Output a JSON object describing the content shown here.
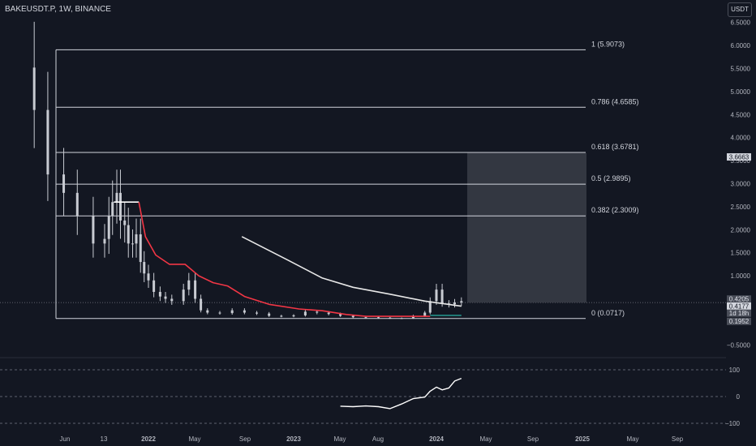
{
  "header": {
    "title": "BAKEUSDT.P, 1W, BINANCE",
    "currency": "USDT"
  },
  "colors": {
    "background": "#131722",
    "text": "#b2b5be",
    "fib_line": "#d1d4dc",
    "red_line": "#f23645",
    "white_curve": "#e8e8e8",
    "teal_line": "#26a69a",
    "candles": "#c8cbd2",
    "box_fill": "#3a3d47"
  },
  "price_axis": {
    "ticks": [
      "6.5000",
      "6.0000",
      "5.5000",
      "5.0000",
      "4.5000",
      "4.0000",
      "3.5000",
      "3.0000",
      "2.5000",
      "2.0000",
      "1.5000",
      "1.0000",
      "0.5000",
      "0.0000",
      "−0.5000"
    ],
    "labels": [
      {
        "text": "3.6663",
        "style": "light"
      },
      {
        "text": "0.4205",
        "style": "dark"
      },
      {
        "text": "0.4177",
        "style": "light"
      },
      {
        "text": "1d 18h",
        "style": "dark"
      },
      {
        "text": "0.1952",
        "style": "dark"
      }
    ]
  },
  "osc_axis": {
    "ticks": [
      "100",
      "0",
      "−100"
    ]
  },
  "time_axis": {
    "ticks": [
      "Jun",
      "13",
      "2022",
      "May",
      "Sep",
      "2023",
      "May",
      "Aug",
      "2024",
      "May",
      "Sep",
      "2025",
      "May",
      "Sep"
    ]
  },
  "fib_labels": [
    "1 (5.9073)",
    "0.786 (4.6585)",
    "0.618 (3.6781)",
    "0.5 (2.9895)",
    "0.382 (2.3009)",
    "0 (0.0717)"
  ],
  "chart_data": {
    "type": "line",
    "symbol": "BAKEUSDT.P",
    "timeframe": "1W",
    "exchange": "BINANCE",
    "y_range": [
      -0.6,
      6.7
    ],
    "fib_levels": [
      {
        "ratio": 1,
        "price": 5.9073
      },
      {
        "ratio": 0.786,
        "price": 4.6585
      },
      {
        "ratio": 0.618,
        "price": 3.6781
      },
      {
        "ratio": 0.5,
        "price": 2.9895
      },
      {
        "ratio": 0.382,
        "price": 2.3009
      },
      {
        "ratio": 0,
        "price": 0.0717
      }
    ],
    "last_price": 0.4177,
    "target_box": {
      "from": "2024-02",
      "to": "2025-01",
      "top": 3.6663,
      "bottom": 0.4177
    },
    "close_series": [
      [
        "2021-05-01",
        4.6
      ],
      [
        "2021-05-15",
        3.2
      ],
      [
        "2021-06-01",
        2.8
      ],
      [
        "2021-06-15",
        2.3
      ],
      [
        "2021-07-01",
        1.7
      ],
      [
        "2021-07-15",
        1.8
      ],
      [
        "2021-08-01",
        2.3
      ],
      [
        "2021-08-15",
        2.6
      ],
      [
        "2021-09-01",
        2.8
      ],
      [
        "2021-09-15",
        2.2
      ],
      [
        "2021-10-01",
        2.1
      ],
      [
        "2021-10-15",
        1.7
      ],
      [
        "2021-11-01",
        1.7
      ],
      [
        "2021-11-15",
        1.9
      ],
      [
        "2021-12-01",
        1.3
      ],
      [
        "2021-12-15",
        1.05
      ],
      [
        "2022-01-01",
        0.9
      ],
      [
        "2022-01-15",
        0.65
      ],
      [
        "2022-02-01",
        0.55
      ],
      [
        "2022-02-15",
        0.5
      ],
      [
        "2022-03-01",
        0.45
      ],
      [
        "2022-04-01",
        0.7
      ],
      [
        "2022-04-15",
        0.9
      ],
      [
        "2022-05-01",
        0.5
      ],
      [
        "2022-05-15",
        0.25
      ],
      [
        "2022-06-01",
        0.2
      ],
      [
        "2022-07-01",
        0.19
      ],
      [
        "2022-08-01",
        0.25
      ],
      [
        "2022-09-01",
        0.2
      ],
      [
        "2022-10-01",
        0.18
      ],
      [
        "2022-11-01",
        0.13
      ],
      [
        "2022-12-01",
        0.12
      ],
      [
        "2023-01-01",
        0.14
      ],
      [
        "2023-02-01",
        0.22
      ],
      [
        "2023-03-01",
        0.2
      ],
      [
        "2023-04-01",
        0.17
      ],
      [
        "2023-05-01",
        0.13
      ],
      [
        "2023-06-01",
        0.1
      ],
      [
        "2023-07-01",
        0.1
      ],
      [
        "2023-08-01",
        0.09
      ],
      [
        "2023-09-01",
        0.08
      ],
      [
        "2023-10-01",
        0.08
      ],
      [
        "2023-11-01",
        0.13
      ],
      [
        "2023-12-01",
        0.2
      ],
      [
        "2023-12-15",
        0.45
      ],
      [
        "2024-01-01",
        0.7
      ],
      [
        "2024-01-15",
        0.4
      ],
      [
        "2024-02-01",
        0.38
      ],
      [
        "2024-02-15",
        0.42
      ],
      [
        "2024-03-01",
        0.45
      ]
    ],
    "red_line": [
      [
        "2021-08-20",
        2.6
      ],
      [
        "2021-11-25",
        2.6
      ],
      [
        "2021-12-20",
        1.85
      ],
      [
        "2022-01-20",
        1.45
      ],
      [
        "2022-02-25",
        1.25
      ],
      [
        "2022-04-05",
        1.25
      ],
      [
        "2022-05-10",
        1.0
      ],
      [
        "2022-06-15",
        0.85
      ],
      [
        "2022-07-20",
        0.78
      ],
      [
        "2022-09-01",
        0.55
      ],
      [
        "2022-11-01",
        0.38
      ],
      [
        "2023-01-15",
        0.28
      ],
      [
        "2023-03-15",
        0.24
      ],
      [
        "2023-05-15",
        0.16
      ],
      [
        "2023-07-01",
        0.12
      ],
      [
        "2023-12-15",
        0.12
      ]
    ],
    "white_curve": [
      [
        "2022-08-25",
        1.85
      ],
      [
        "2022-12-15",
        1.35
      ],
      [
        "2023-03-15",
        0.95
      ],
      [
        "2023-06-01",
        0.75
      ],
      [
        "2023-09-01",
        0.6
      ],
      [
        "2023-12-01",
        0.45
      ],
      [
        "2024-03-01",
        0.34
      ]
    ],
    "teal_line": [
      [
        "2023-12-15",
        0.14
      ],
      [
        "2024-03-01",
        0.14
      ]
    ],
    "oscillator": {
      "range": [
        -100,
        100
      ],
      "values": [
        [
          "2023-05-01",
          -36
        ],
        [
          "2023-06-01",
          -38
        ],
        [
          "2023-07-01",
          -35
        ],
        [
          "2023-08-01",
          -38
        ],
        [
          "2023-09-01",
          -45
        ],
        [
          "2023-10-01",
          -28
        ],
        [
          "2023-11-01",
          -8
        ],
        [
          "2023-12-01",
          -2
        ],
        [
          "2023-12-15",
          20
        ],
        [
          "2024-01-01",
          35
        ],
        [
          "2024-01-15",
          25
        ],
        [
          "2024-02-01",
          32
        ],
        [
          "2024-02-15",
          58
        ],
        [
          "2024-03-01",
          68
        ]
      ]
    }
  }
}
